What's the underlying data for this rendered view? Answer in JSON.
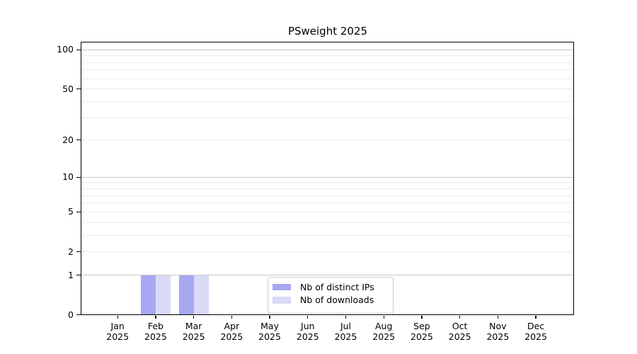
{
  "chart_data": {
    "type": "bar",
    "title": "PSweight 2025",
    "x_year": "2025",
    "categories": [
      "Jan",
      "Feb",
      "Mar",
      "Apr",
      "May",
      "Jun",
      "Jul",
      "Aug",
      "Sep",
      "Oct",
      "Nov",
      "Dec"
    ],
    "series": [
      {
        "name": "Nb of distinct IPs",
        "color": "#a6a9f2",
        "values": [
          0,
          1,
          1,
          0,
          0,
          0,
          0,
          0,
          0,
          0,
          0,
          0
        ]
      },
      {
        "name": "Nb of downloads",
        "color": "#d9daf8",
        "values": [
          0,
          1,
          1,
          0,
          0,
          0,
          0,
          0,
          0,
          0,
          0,
          0
        ]
      }
    ],
    "y_scale": "log10(1+x)",
    "y_ticks": [
      0,
      1,
      2,
      5,
      10,
      20,
      50,
      100
    ],
    "y_major_gridlines": [
      1,
      10,
      100
    ],
    "y_minor_gridlines": [
      2,
      3,
      4,
      5,
      6,
      7,
      8,
      9,
      20,
      30,
      40,
      50,
      60,
      70,
      80,
      90
    ],
    "ylim": [
      0,
      110
    ],
    "xlabel": "",
    "ylabel": "",
    "grid": "on",
    "legend_position": "lower center",
    "colors": {
      "axis": "#000000",
      "major_grid": "#c9c9c9",
      "minor_grid": "#ececec",
      "background": "#ffffff",
      "legend_border": "#cccccc"
    }
  }
}
